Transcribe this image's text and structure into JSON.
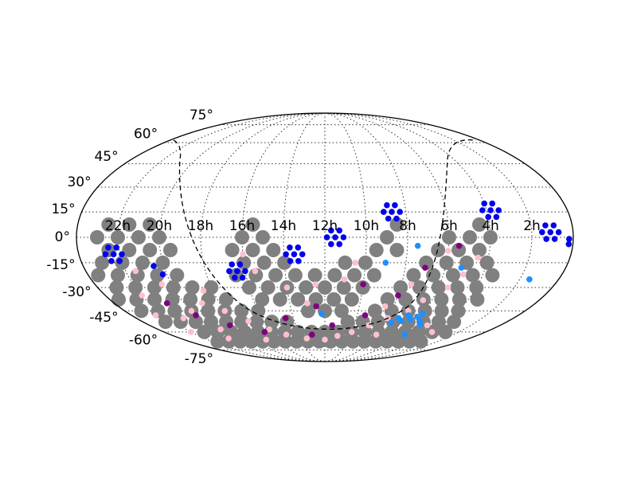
{
  "chart_data": {
    "type": "scatter",
    "projection": "mollweide",
    "grid": true,
    "xlim": [
      24,
      0
    ],
    "ylim": [
      -90,
      90
    ],
    "xticks": [
      {
        "value": 22,
        "label": "22h"
      },
      {
        "value": 20,
        "label": "20h"
      },
      {
        "value": 18,
        "label": "18h"
      },
      {
        "value": 16,
        "label": "16h"
      },
      {
        "value": 14,
        "label": "14h"
      },
      {
        "value": 12,
        "label": "12h"
      },
      {
        "value": 10,
        "label": "10h"
      },
      {
        "value": 8,
        "label": "8h"
      },
      {
        "value": 6,
        "label": "6h"
      },
      {
        "value": 4,
        "label": "4h"
      },
      {
        "value": 2,
        "label": "2h"
      }
    ],
    "yticks": [
      {
        "value": 75,
        "label": "75°"
      },
      {
        "value": 60,
        "label": "60°"
      },
      {
        "value": 45,
        "label": "45°"
      },
      {
        "value": 30,
        "label": "30°"
      },
      {
        "value": 15,
        "label": "15°"
      },
      {
        "value": 0,
        "label": "0°"
      },
      {
        "value": -15,
        "label": "-15°"
      },
      {
        "value": -30,
        "label": "-30°"
      },
      {
        "value": -45,
        "label": "-45°"
      },
      {
        "value": -60,
        "label": "-60°"
      },
      {
        "value": -75,
        "label": "-75°"
      }
    ],
    "series": [
      {
        "color": "#808080",
        "x": [
          20.5,
          21.5,
          22.5,
          15.5,
          8.5,
          4.5,
          20,
          21,
          22,
          23,
          15,
          16,
          9,
          4,
          5,
          6,
          19.5,
          20.5,
          21.5,
          22.5,
          14.5,
          15.5,
          16.5,
          8.5,
          9.5,
          4.5,
          5.5,
          6.5,
          20,
          21,
          22,
          23,
          14,
          15,
          16,
          10,
          11,
          4,
          5,
          6,
          7,
          19.5,
          20.5,
          21.5,
          22.5,
          23.5,
          9.5,
          10.5,
          11.5,
          12.5,
          13.5,
          14.5,
          15.5,
          16.5,
          3.5,
          4.5,
          5.5,
          6.5,
          7.5,
          18,
          19,
          20,
          21,
          22,
          23,
          10,
          11,
          12,
          13,
          14,
          15,
          16,
          4,
          5,
          6,
          7,
          8,
          17.5,
          18.5,
          19.5,
          20.5,
          21.5,
          22.5,
          23.5,
          10.5,
          11.5,
          12.5,
          13.5,
          14.5,
          15.5,
          3.5,
          4.5,
          5.5,
          6.5,
          7.5,
          8.5,
          16,
          17,
          18,
          19,
          20,
          21,
          22,
          23,
          11,
          12,
          13,
          4,
          5,
          6,
          7,
          8,
          9,
          14.5,
          15.5,
          16.5,
          17.5,
          18.5,
          19.5,
          20.5,
          21.5,
          22.5,
          3.5,
          4.5,
          5.5,
          6.5,
          7.5,
          8.5,
          9.5,
          10.5,
          3,
          4,
          5,
          6,
          7,
          8,
          9,
          10,
          11,
          12,
          13,
          14,
          15,
          16,
          17,
          18,
          19,
          20,
          21,
          3.5,
          4.5,
          5.5,
          6.5,
          7.5,
          8.5,
          9.5,
          10.5,
          11.5,
          12.5,
          13.5,
          14.5,
          15.5,
          16.5,
          17.5,
          18.5,
          19.5,
          20.5,
          21.5
        ],
        "values": [
          7.5,
          7.5,
          7.5,
          7.5,
          7.5,
          7.5,
          0,
          0,
          0,
          0,
          0,
          0,
          0,
          0,
          0,
          0,
          -7.5,
          -7.5,
          -7.5,
          -7.5,
          -7.5,
          -7.5,
          -7.5,
          -7.5,
          -7.5,
          -7.5,
          -7.5,
          -7.5,
          -15,
          -15,
          -15,
          -15,
          -15,
          -15,
          -15,
          -15,
          -15,
          -15,
          -15,
          -15,
          -15,
          -22.5,
          -22.5,
          -22.5,
          -22.5,
          -22.5,
          -22.5,
          -22.5,
          -22.5,
          -22.5,
          -22.5,
          -22.5,
          -22.5,
          -22.5,
          -22.5,
          -22.5,
          -22.5,
          -22.5,
          -22.5,
          -30,
          -30,
          -30,
          -30,
          -30,
          -30,
          -30,
          -30,
          -30,
          -30,
          -30,
          -30,
          -30,
          -30,
          -30,
          -30,
          -30,
          -30,
          -37.5,
          -37.5,
          -37.5,
          -37.5,
          -37.5,
          -37.5,
          -37.5,
          -37.5,
          -37.5,
          -37.5,
          -37.5,
          -37.5,
          -37.5,
          -37.5,
          -37.5,
          -37.5,
          -37.5,
          -37.5,
          -37.5,
          -45,
          -45,
          -45,
          -45,
          -45,
          -45,
          -45,
          -45,
          -45,
          -45,
          -45,
          -45,
          -45,
          -45,
          -45,
          -45,
          -45,
          -52.5,
          -52.5,
          -52.5,
          -52.5,
          -52.5,
          -52.5,
          -52.5,
          -52.5,
          -52.5,
          -52.5,
          -52.5,
          -52.5,
          -52.5,
          -52.5,
          -52.5,
          -52.5,
          -52.5,
          -60,
          -60,
          -60,
          -60,
          -60,
          -60,
          -60,
          -60,
          -60,
          -60,
          -60,
          -60,
          -60,
          -60,
          -60,
          -60,
          -60,
          -60,
          -60,
          -67.5,
          -67.5,
          -67.5,
          -67.5,
          -67.5,
          -67.5,
          -67.5,
          -67.5,
          -67.5,
          -67.5,
          -67.5,
          -67.5,
          -67.5,
          -67.5,
          -67.5,
          -67.5,
          -67.5,
          -67.5,
          -67.5
        ]
      },
      {
        "color": "#ffc0cb",
        "x": [
          21.5,
          20.5,
          22,
          19,
          20,
          21,
          22.5,
          18,
          17,
          19.5,
          16,
          15,
          13.5,
          12,
          11,
          10,
          9,
          8,
          7,
          6.5,
          5.5,
          5,
          4.5,
          6,
          7.5,
          8.5,
          14,
          12.5,
          11,
          10.5,
          15.5,
          16,
          13,
          18.5,
          22,
          20,
          5,
          4,
          8,
          17
        ],
        "values": [
          -20,
          -28,
          -35,
          -40,
          -45,
          -50,
          -48,
          -45,
          -52,
          -58,
          -58,
          -62,
          -65,
          -66,
          -63,
          -60,
          -55,
          -50,
          -45,
          -38,
          -30,
          -22,
          -12,
          -8,
          -28,
          -42,
          -30,
          -28,
          -25,
          -15,
          -20,
          -10,
          -40,
          -32,
          -60,
          -65,
          -55,
          -60,
          -62,
          -66
        ]
      },
      {
        "color": "#800080",
        "x": [
          20,
          18.5,
          16.5,
          13,
          11.5,
          9.5,
          8,
          7,
          5.5,
          12.5,
          14.5,
          10,
          21
        ],
        "values": [
          -48,
          -55,
          -60,
          -62,
          -55,
          -48,
          -35,
          -18,
          -5,
          -42,
          -50,
          -28,
          -40
        ]
      },
      {
        "color": "#0000ee",
        "x": [
          8.7,
          8.3,
          9.1,
          8.5,
          8.9,
          8.5,
          8.9,
          11.5,
          11.1,
          11.9,
          11.3,
          11.7,
          11.3,
          11.7,
          13.5,
          13.1,
          13.9,
          13.3,
          13.7,
          13.3,
          13.7,
          16.4,
          16.0,
          16.8,
          16.2,
          16.6,
          16.2,
          16.6,
          22.3,
          21.9,
          22.7,
          22.1,
          22.5,
          22.1,
          22.5,
          3.8,
          3.4,
          4.2,
          3.6,
          4.0,
          3.6,
          4.0,
          1.1,
          0.7,
          1.5,
          0.9,
          1.3,
          0.9,
          1.3,
          0.2,
          0.2,
          20.2,
          20.5
        ],
        "values": [
          15,
          15,
          15,
          19,
          19,
          11,
          11,
          0,
          0,
          0,
          4,
          4,
          -4,
          -4,
          -10,
          -10,
          -10,
          -6,
          -6,
          -14,
          -14,
          -20,
          -20,
          -20,
          -16,
          -16,
          -24,
          -24,
          -10,
          -10,
          -10,
          -6,
          -6,
          -14,
          -14,
          16,
          16,
          16,
          20,
          20,
          12,
          12,
          3,
          3,
          3,
          7,
          7,
          -1,
          -1,
          -1,
          -4,
          -22,
          -17
        ]
      },
      {
        "color": "#1e90ff",
        "x": [
          7.3,
          7,
          6.8,
          6.5,
          6.2,
          7.6,
          5.8,
          6,
          5.5,
          9,
          5.2,
          1.5,
          7.5,
          12.2,
          5.8
        ],
        "values": [
          -50,
          -52,
          -48,
          -51,
          -49,
          -53,
          -52,
          -47,
          -55,
          -15,
          -18,
          -25,
          -5,
          -47,
          -62
        ]
      }
    ]
  }
}
